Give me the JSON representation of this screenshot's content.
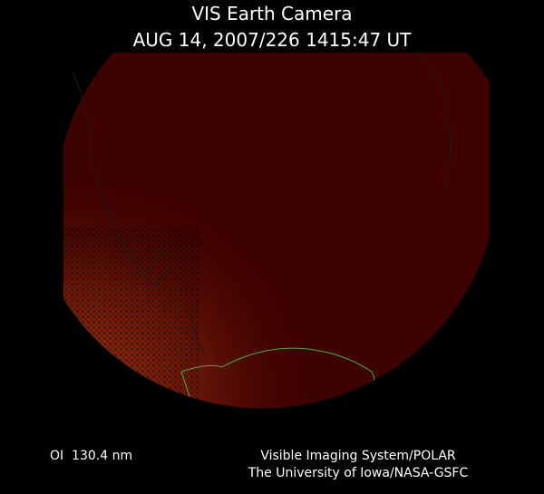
{
  "header": {
    "title": "VIS Earth Camera",
    "timestamp": "AUG 14, 2007/226 1415:47 UT"
  },
  "footer": {
    "wavelength": "OI  130.4 nm",
    "credit_line1": "Visible Imaging System/POLAR",
    "credit_line2": "The University of Iowa/NASA-GSFC"
  }
}
